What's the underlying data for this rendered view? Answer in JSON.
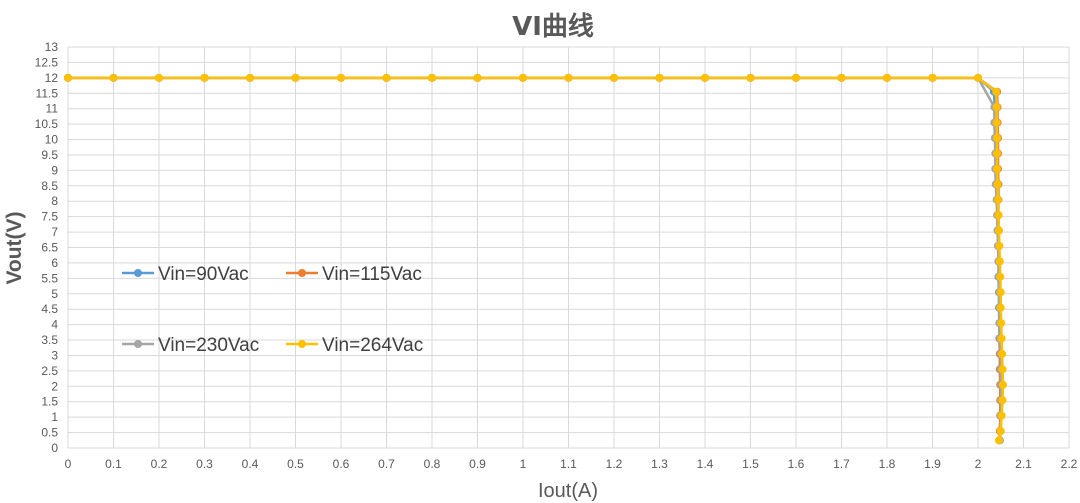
{
  "chart_data": {
    "type": "line",
    "title": "VI曲线",
    "xlabel": "Iout(A)",
    "ylabel": "Vout(V)",
    "xlim": [
      0,
      2.2
    ],
    "ylim": [
      0,
      13
    ],
    "x_ticks": [
      "0",
      "0.1",
      "0.2",
      "0.3",
      "0.4",
      "0.5",
      "0.6",
      "0.7",
      "0.8",
      "0.9",
      "1",
      "1.1",
      "1.2",
      "1.3",
      "1.4",
      "1.5",
      "1.6",
      "1.7",
      "1.8",
      "1.9",
      "2",
      "2.1",
      "2.2"
    ],
    "y_ticks": [
      "0",
      "0.5",
      "1",
      "1.5",
      "2",
      "2.5",
      "3",
      "3.5",
      "4",
      "4.5",
      "5",
      "5.5",
      "6",
      "6.5",
      "7",
      "7.5",
      "8",
      "8.5",
      "9",
      "9.5",
      "10",
      "10.5",
      "11",
      "11.5",
      "12",
      "12.5",
      "13"
    ],
    "grid": true,
    "legend_position": "left-middle",
    "series": [
      {
        "name": "Vin=90Vac",
        "color": "#5b9bd5",
        "points": [
          [
            0,
            12
          ],
          [
            0.1,
            12
          ],
          [
            0.2,
            12
          ],
          [
            0.3,
            12
          ],
          [
            0.4,
            12
          ],
          [
            0.5,
            12
          ],
          [
            0.6,
            12
          ],
          [
            0.7,
            12
          ],
          [
            0.8,
            12
          ],
          [
            0.9,
            12
          ],
          [
            1,
            12
          ],
          [
            1.1,
            12
          ],
          [
            1.2,
            12
          ],
          [
            1.3,
            12
          ],
          [
            1.4,
            12
          ],
          [
            1.5,
            12
          ],
          [
            1.6,
            12
          ],
          [
            1.7,
            12
          ],
          [
            1.8,
            12
          ],
          [
            1.9,
            12
          ],
          [
            2,
            12
          ],
          [
            2.035,
            11.55
          ],
          [
            2.037,
            11.05
          ],
          [
            2.038,
            10.55
          ],
          [
            2.039,
            10.05
          ],
          [
            2.04,
            9.55
          ],
          [
            2.04,
            9.05
          ],
          [
            2.041,
            8.55
          ],
          [
            2.042,
            8.05
          ],
          [
            2.043,
            7.55
          ],
          [
            2.043,
            7.05
          ],
          [
            2.044,
            6.55
          ],
          [
            2.045,
            6.05
          ],
          [
            2.045,
            5.55
          ],
          [
            2.046,
            5.05
          ],
          [
            2.046,
            4.55
          ],
          [
            2.047,
            4.05
          ],
          [
            2.047,
            3.55
          ],
          [
            2.048,
            3.05
          ],
          [
            2.048,
            2.55
          ],
          [
            2.049,
            2.05
          ],
          [
            2.049,
            1.55
          ],
          [
            2.049,
            1.05
          ],
          [
            2.049,
            0.55
          ],
          [
            2.048,
            0.25
          ]
        ]
      },
      {
        "name": "Vin=115Vac",
        "color": "#ed7d31",
        "points": [
          [
            0,
            12
          ],
          [
            0.1,
            12
          ],
          [
            0.2,
            12
          ],
          [
            0.3,
            12
          ],
          [
            0.4,
            12
          ],
          [
            0.5,
            12
          ],
          [
            0.6,
            12
          ],
          [
            0.7,
            12
          ],
          [
            0.8,
            12
          ],
          [
            0.9,
            12
          ],
          [
            1,
            12
          ],
          [
            1.1,
            12
          ],
          [
            1.2,
            12
          ],
          [
            1.3,
            12
          ],
          [
            1.4,
            12
          ],
          [
            1.5,
            12
          ],
          [
            1.6,
            12
          ],
          [
            1.7,
            12
          ],
          [
            1.8,
            12
          ],
          [
            1.9,
            12
          ],
          [
            2,
            12
          ],
          [
            2.042,
            11.55
          ],
          [
            2.043,
            11.05
          ],
          [
            2.043,
            10.55
          ],
          [
            2.044,
            10.05
          ],
          [
            2.044,
            9.55
          ],
          [
            2.044,
            9.05
          ],
          [
            2.045,
            8.55
          ],
          [
            2.045,
            8.05
          ],
          [
            2.045,
            7.55
          ],
          [
            2.046,
            7.05
          ],
          [
            2.046,
            6.55
          ],
          [
            2.046,
            6.05
          ],
          [
            2.047,
            5.55
          ],
          [
            2.047,
            5.05
          ],
          [
            2.047,
            4.55
          ],
          [
            2.048,
            4.05
          ],
          [
            2.048,
            3.55
          ],
          [
            2.048,
            3.05
          ],
          [
            2.049,
            2.55
          ],
          [
            2.049,
            2.05
          ],
          [
            2.049,
            1.55
          ],
          [
            2.049,
            1.05
          ],
          [
            2.048,
            0.55
          ],
          [
            2.047,
            0.25
          ]
        ]
      },
      {
        "name": "Vin=230Vac",
        "color": "#a5a5a5",
        "points": [
          [
            0,
            12
          ],
          [
            0.1,
            12
          ],
          [
            0.2,
            12
          ],
          [
            0.3,
            12
          ],
          [
            0.4,
            12
          ],
          [
            0.5,
            12
          ],
          [
            0.6,
            12
          ],
          [
            0.7,
            12
          ],
          [
            0.8,
            12
          ],
          [
            0.9,
            12
          ],
          [
            1,
            12
          ],
          [
            1.1,
            12
          ],
          [
            1.2,
            12
          ],
          [
            1.3,
            12
          ],
          [
            1.4,
            12
          ],
          [
            1.5,
            12
          ],
          [
            1.6,
            12
          ],
          [
            1.7,
            12
          ],
          [
            1.8,
            12
          ],
          [
            1.9,
            12
          ],
          [
            2,
            12
          ],
          [
            2.036,
            11.05
          ],
          [
            2.036,
            10.55
          ],
          [
            2.037,
            10.05
          ],
          [
            2.038,
            9.55
          ],
          [
            2.038,
            9.05
          ],
          [
            2.039,
            8.55
          ],
          [
            2.041,
            8.05
          ],
          [
            2.042,
            7.55
          ],
          [
            2.043,
            7.05
          ],
          [
            2.044,
            6.55
          ],
          [
            2.045,
            6.05
          ],
          [
            2.046,
            5.55
          ],
          [
            2.047,
            5.05
          ],
          [
            2.047,
            4.55
          ],
          [
            2.048,
            4.05
          ],
          [
            2.049,
            3.55
          ],
          [
            2.05,
            3.05
          ],
          [
            2.051,
            2.55
          ],
          [
            2.051,
            2.05
          ],
          [
            2.051,
            1.55
          ],
          [
            2.05,
            1.05
          ],
          [
            2.05,
            0.55
          ],
          [
            2.048,
            0.25
          ]
        ]
      },
      {
        "name": "Vin=264Vac",
        "color": "#ffc000",
        "points": [
          [
            0,
            12
          ],
          [
            0.1,
            12
          ],
          [
            0.2,
            12
          ],
          [
            0.3,
            12
          ],
          [
            0.4,
            12
          ],
          [
            0.5,
            12
          ],
          [
            0.6,
            12
          ],
          [
            0.7,
            12
          ],
          [
            0.8,
            12
          ],
          [
            0.9,
            12
          ],
          [
            1,
            12
          ],
          [
            1.1,
            12
          ],
          [
            1.2,
            12
          ],
          [
            1.3,
            12
          ],
          [
            1.4,
            12
          ],
          [
            1.5,
            12
          ],
          [
            1.6,
            12
          ],
          [
            1.7,
            12
          ],
          [
            1.8,
            12
          ],
          [
            1.9,
            12
          ],
          [
            2,
            12
          ],
          [
            2.04,
            11.55
          ],
          [
            2.041,
            11.05
          ],
          [
            2.041,
            10.55
          ],
          [
            2.042,
            10.05
          ],
          [
            2.042,
            9.55
          ],
          [
            2.042,
            9.05
          ],
          [
            2.043,
            8.55
          ],
          [
            2.044,
            8.05
          ],
          [
            2.045,
            7.55
          ],
          [
            2.046,
            7.05
          ],
          [
            2.047,
            6.55
          ],
          [
            2.048,
            6.05
          ],
          [
            2.049,
            5.55
          ],
          [
            2.05,
            5.05
          ],
          [
            2.05,
            4.55
          ],
          [
            2.051,
            4.05
          ],
          [
            2.052,
            3.55
          ],
          [
            2.053,
            3.05
          ],
          [
            2.054,
            2.55
          ],
          [
            2.055,
            2.05
          ],
          [
            2.054,
            1.55
          ],
          [
            2.052,
            1.05
          ],
          [
            2.05,
            0.55
          ],
          [
            2.046,
            0.25
          ]
        ]
      }
    ]
  }
}
